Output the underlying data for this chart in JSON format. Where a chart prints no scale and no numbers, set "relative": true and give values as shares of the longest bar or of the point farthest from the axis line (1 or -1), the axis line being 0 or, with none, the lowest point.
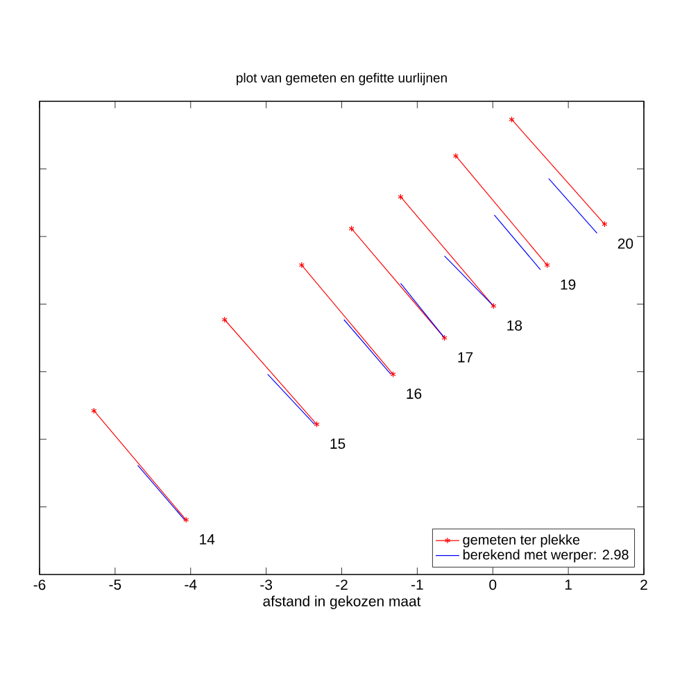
{
  "chart_data": {
    "type": "line",
    "title": "plot van gemeten en gefitte uurlijnen",
    "xlabel": "afstand in gekozen maat",
    "relative": true,
    "xlim": [
      -6,
      2
    ],
    "xticks": [
      -6,
      -5,
      -4,
      -3,
      -2,
      -1,
      0,
      1,
      2
    ],
    "tick_labels": "x",
    "grid": false,
    "legend": "bottom right",
    "series": [
      {
        "name": "gemeten ter plekke",
        "color": "#ff0000",
        "marker": "cross",
        "x": [
          -5.28,
          -4.06,
          null,
          -3.55,
          -2.33,
          null,
          -2.53,
          -1.32,
          null,
          -1.87,
          -0.64,
          null,
          -1.22,
          0.01,
          null,
          -0.49,
          0.72,
          null,
          0.25,
          1.48
        ],
        "values": [
          0.36,
          0.12,
          null,
          0.56,
          0.33,
          null,
          0.68,
          0.44,
          null,
          0.76,
          0.52,
          null,
          0.83,
          0.59,
          null,
          0.92,
          0.68,
          null,
          1.0,
          0.77
        ]
      },
      {
        "name": "berekend met werper: 2.98",
        "color": "#0000ff",
        "marker": "none",
        "x": [
          -4.7,
          -4.08,
          null,
          -2.98,
          -2.36,
          null,
          -1.97,
          -1.35,
          null,
          -1.22,
          -0.64,
          null,
          -0.64,
          0.01,
          null,
          0.02,
          0.63,
          null,
          0.74,
          1.38
        ],
        "values": [
          0.24,
          0.12,
          null,
          0.44,
          0.33,
          null,
          0.56,
          0.44,
          null,
          0.64,
          0.52,
          null,
          0.7,
          0.59,
          null,
          0.79,
          0.67,
          null,
          0.87,
          0.75
        ]
      }
    ],
    "annotations": [
      {
        "text": "14",
        "x": -4.06,
        "y": 0.12
      },
      {
        "text": "15",
        "x": -2.33,
        "y": 0.33
      },
      {
        "text": "16",
        "x": -1.32,
        "y": 0.44
      },
      {
        "text": "17",
        "x": -0.64,
        "y": 0.52
      },
      {
        "text": "18",
        "x": 0.01,
        "y": 0.59
      },
      {
        "text": "19",
        "x": 0.72,
        "y": 0.68
      },
      {
        "text": "20",
        "x": 1.48,
        "y": 0.77
      }
    ]
  }
}
